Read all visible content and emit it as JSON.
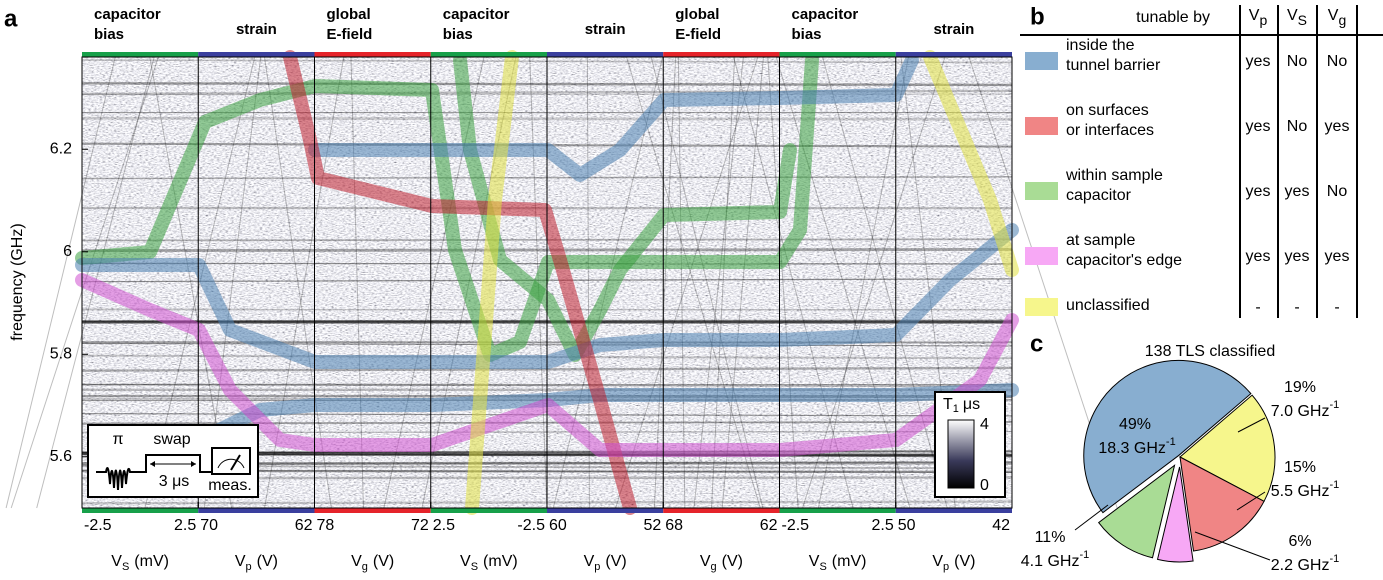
{
  "panel_labels": [
    "a",
    "b",
    "c"
  ],
  "chart_data": [
    {
      "type": "image-panel",
      "ylabel": "frequency (GHz)",
      "ylim": [
        5.5,
        6.38
      ],
      "yticks": [
        5.6,
        5.8,
        6,
        6.2
      ],
      "segments": [
        {
          "header": [
            "capacitor",
            "bias"
          ],
          "color": "#17a04a",
          "xlim": [
            -2.5,
            2.5
          ],
          "xticks": [
            -2.5,
            2.5
          ],
          "xlabel": {
            "symbol": "V",
            "sub": "S",
            "unit": "(mV)"
          }
        },
        {
          "header": [
            "strain"
          ],
          "color": "#3a3f9e",
          "xlim": [
            70,
            62
          ],
          "xticks": [
            70,
            62
          ],
          "xlabel": {
            "symbol": "V",
            "sub": "p",
            "unit": "(V)"
          }
        },
        {
          "header": [
            "global",
            "E-field"
          ],
          "color": "#e5232a",
          "xlim": [
            78,
            72
          ],
          "xticks": [
            78,
            72
          ],
          "xlabel": {
            "symbol": "V",
            "sub": "g",
            "unit": "(V)"
          }
        },
        {
          "header": [
            "capacitor",
            "bias"
          ],
          "color": "#17a04a",
          "xlim": [
            2.5,
            -2.5
          ],
          "xticks": [
            2.5,
            -2.5
          ],
          "xlabel": {
            "symbol": "V",
            "sub": "S",
            "unit": "(mV)"
          }
        },
        {
          "header": [
            "strain"
          ],
          "color": "#3a3f9e",
          "xlim": [
            60,
            52
          ],
          "xticks": [
            60,
            52
          ],
          "xlabel": {
            "symbol": "V",
            "sub": "p",
            "unit": "(V)"
          }
        },
        {
          "header": [
            "global",
            "E-field"
          ],
          "color": "#e5232a",
          "xlim": [
            68,
            62
          ],
          "xticks": [
            68,
            62
          ],
          "xlabel": {
            "symbol": "V",
            "sub": "g",
            "unit": "(V)"
          }
        },
        {
          "header": [
            "capacitor",
            "bias"
          ],
          "color": "#17a04a",
          "xlim": [
            -2.5,
            2.5
          ],
          "xticks": [
            -2.5,
            2.5
          ],
          "xlabel": {
            "symbol": "V",
            "sub": "S",
            "unit": "(mV)"
          }
        },
        {
          "header": [
            "strain"
          ],
          "color": "#3a3f9e",
          "xlim": [
            50,
            42
          ],
          "xticks": [
            50,
            42
          ],
          "xlabel": {
            "symbol": "V",
            "sub": "p",
            "unit": "(V)"
          }
        }
      ],
      "colorbar": {
        "symbol": "T",
        "sub": "1",
        "unit": "μs",
        "lim": [
          0,
          4
        ],
        "ticks": [
          0,
          4
        ]
      },
      "inset": {
        "pulse": "π",
        "swap": "swap",
        "delay": "3 μs",
        "measure": "meas."
      }
    },
    {
      "type": "pie",
      "title": "138 TLS classified",
      "values": [
        49,
        19,
        15,
        6,
        11
      ],
      "value_labels": [
        "49%",
        "19%",
        "15%",
        "6%",
        "11%"
      ],
      "colors": [
        "#88aed0",
        "#f6f68c",
        "#f08585",
        "#f7a8f5",
        "#a9dc95"
      ],
      "density_labels": [
        "18.3 GHz",
        "7.0 GHz",
        "5.5 GHz",
        "2.2 GHz",
        "4.1 GHz"
      ],
      "density_exp": "-1"
    }
  ],
  "table": {
    "header": "tunable by",
    "columns": [
      {
        "symbol": "V",
        "sub": "p",
        "color": "#3a3f9e"
      },
      {
        "symbol": "V",
        "sub": "S",
        "color": "#17a04a"
      },
      {
        "symbol": "V",
        "sub": "g",
        "color": "#e5232a"
      }
    ],
    "rows": [
      {
        "color": "#88aed0",
        "label": [
          "inside the",
          "tunnel barrier"
        ],
        "cells": [
          "yes",
          "No",
          "No"
        ]
      },
      {
        "color": "#f08585",
        "label": [
          "on surfaces",
          "or interfaces"
        ],
        "cells": [
          "yes",
          "No",
          "yes"
        ]
      },
      {
        "color": "#a9dc95",
        "label": [
          "within sample",
          "capacitor"
        ],
        "cells": [
          "yes",
          "yes",
          "No"
        ]
      },
      {
        "color": "#f7a8f5",
        "label": [
          "at sample",
          "capacitor's edge"
        ],
        "cells": [
          "yes",
          "yes",
          "yes"
        ]
      },
      {
        "color": "#f6f68c",
        "label": [
          "unclassified"
        ],
        "cells": [
          "-",
          "-",
          "-"
        ]
      }
    ]
  }
}
